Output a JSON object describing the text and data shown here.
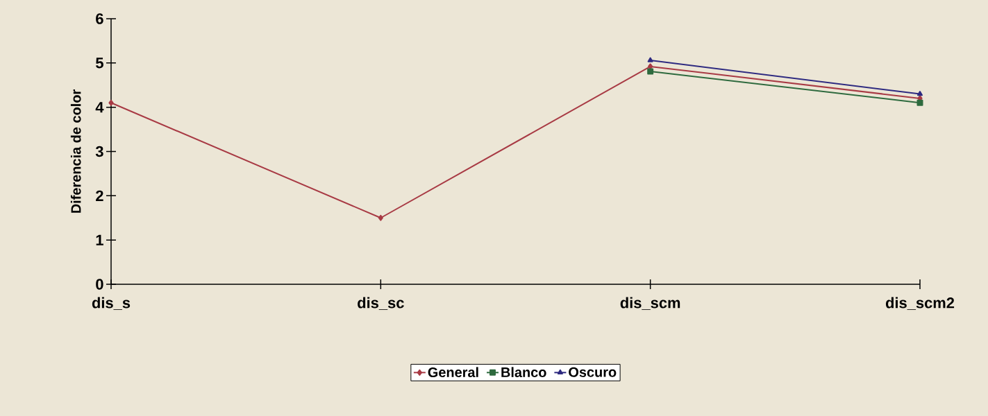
{
  "chart_data": {
    "type": "line",
    "ylabel": "Diferencia de color",
    "categories": [
      "dis_s",
      "dis_sc",
      "dis_scm",
      "dis_scm2"
    ],
    "series": [
      {
        "name": "General",
        "color": "#a83a44",
        "marker": "diamond",
        "values": [
          4.1,
          1.5,
          4.92,
          4.2
        ]
      },
      {
        "name": "Blanco",
        "color": "#2e6a3e",
        "marker": "square",
        "values": [
          null,
          null,
          4.81,
          4.1
        ]
      },
      {
        "name": "Oscuro",
        "color": "#2e2a80",
        "marker": "triangle",
        "values": [
          null,
          null,
          5.06,
          4.3
        ]
      }
    ],
    "ylim": [
      0,
      6
    ],
    "yticks": [
      0,
      1,
      2,
      3,
      4,
      5,
      6
    ],
    "grid": false,
    "legend": "bottom"
  }
}
